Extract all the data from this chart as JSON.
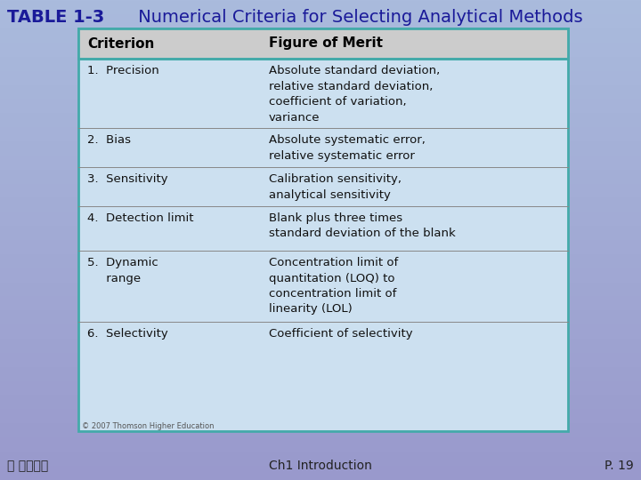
{
  "title_bold": "TABLE 1-3",
  "title_normal": " Numerical Criteria for Selecting Analytical Methods",
  "bg_color_top": "#9999cc",
  "bg_color_bottom": "#aabbdd",
  "table_bg": "#cce0f0",
  "table_border_color": "#44aaaa",
  "header_bg": "#cccccc",
  "header_col1": "Criterion",
  "header_col2": "Figure of Merit",
  "rows": [
    {
      "criterion": "1.  Precision",
      "merit": "Absolute standard deviation,\nrelative standard deviation,\ncoefficient of variation,\nvariance"
    },
    {
      "criterion": "2.  Bias",
      "merit": "Absolute systematic error,\nrelative systematic error"
    },
    {
      "criterion": "3.  Sensitivity",
      "merit": "Calibration sensitivity,\nanalytical sensitivity"
    },
    {
      "criterion": "4.  Detection limit",
      "merit": "Blank plus three times\nstandard deviation of the blank"
    },
    {
      "criterion": "5.  Dynamic\n     range",
      "merit": "Concentration limit of\nquantitation (LOQ) to\nconcentration limit of\nlinearity (LOL)"
    },
    {
      "criterion": "6.  Selectivity",
      "merit": "Coefficient of selectivity"
    }
  ],
  "footer_text": "© 2007 Thomson Higher Education",
  "bottom_left": "ⓘ 歐亞書局",
  "bottom_center": "Ch1 Introduction",
  "bottom_right": "P. 19",
  "title_color": "#1a1a99",
  "header_text_color": "#000000",
  "body_text_color": "#111111",
  "bottom_text_color": "#222222",
  "row_separator_color": "#888888",
  "col_div_ratio": 0.37
}
